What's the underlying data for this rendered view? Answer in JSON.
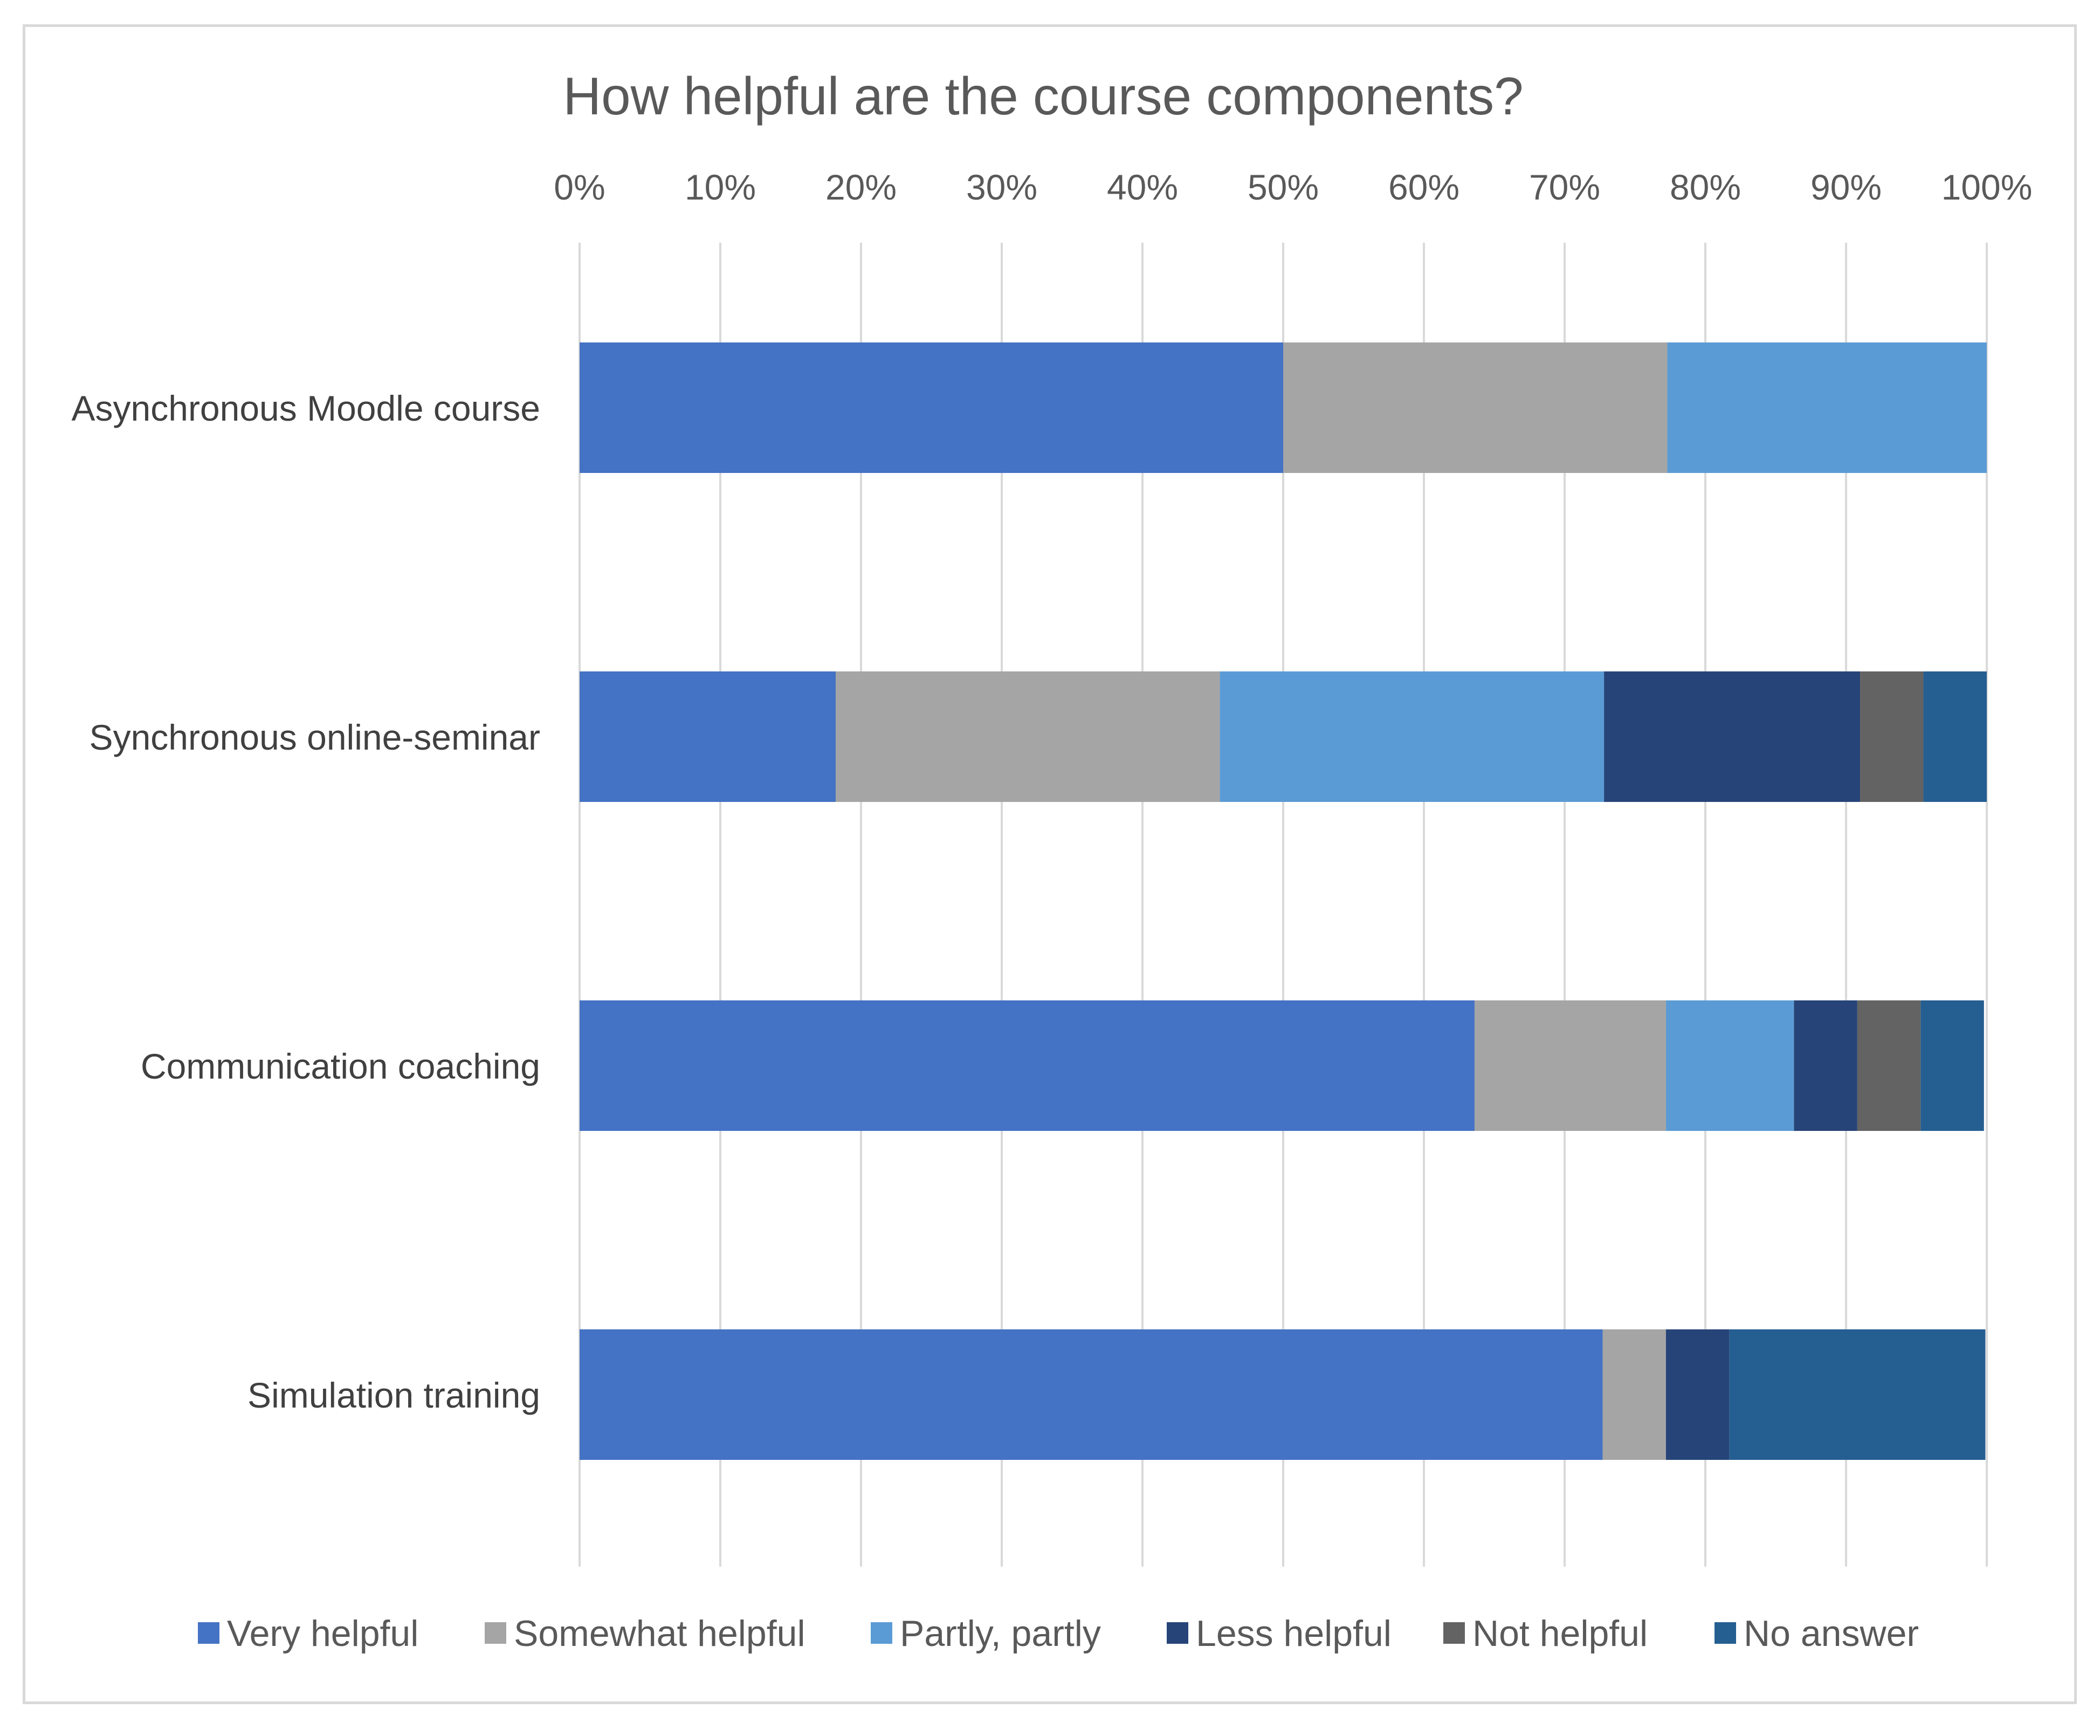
{
  "chart_data": {
    "type": "bar",
    "orientation": "horizontal",
    "stacked": "percent",
    "title": "How helpful are the course components?",
    "xlabel": "",
    "ylabel": "",
    "xlim": [
      0,
      100
    ],
    "x_ticks": [
      "0%",
      "10%",
      "20%",
      "30%",
      "40%",
      "50%",
      "60%",
      "70%",
      "80%",
      "90%",
      "100%"
    ],
    "grid": true,
    "legend_position": "bottom",
    "categories": [
      "Asynchronous Moodle course",
      "Synchronous online-seminar",
      "Communication coaching",
      "Simulation training"
    ],
    "series": [
      {
        "name": "Very helpful",
        "color": "#4472C4",
        "values": [
          50.0,
          18.2,
          63.6,
          72.7
        ]
      },
      {
        "name": "Somewhat helpful",
        "color": "#A5A5A5",
        "values": [
          27.3,
          27.3,
          13.6,
          4.5
        ]
      },
      {
        "name": "Partly, partly",
        "color": "#5B9BD5",
        "values": [
          22.7,
          27.3,
          9.1,
          0
        ]
      },
      {
        "name": "Less helpful",
        "color": "#264478",
        "values": [
          0,
          18.2,
          4.5,
          4.5
        ]
      },
      {
        "name": "Not helpful",
        "color": "#636363",
        "values": [
          0,
          4.5,
          4.5,
          0
        ]
      },
      {
        "name": "No answer",
        "color": "#255E91",
        "values": [
          0,
          4.5,
          4.5,
          18.2
        ]
      }
    ]
  }
}
